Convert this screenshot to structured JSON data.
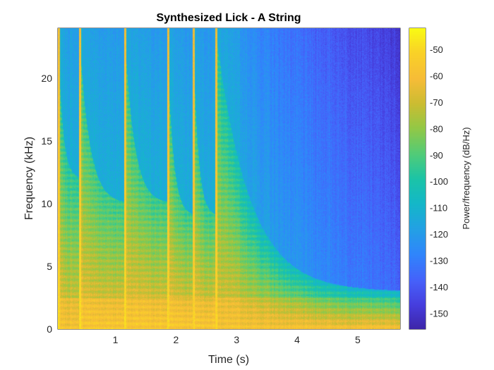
{
  "chart_data": {
    "type": "heatmap",
    "title": "Synthesized Lick - A String",
    "xlabel": "Time (s)",
    "ylabel": "Frequency (kHz)",
    "colorbar_label": "Power/frequency (dB/Hz)",
    "xlim": [
      0.05,
      5.7
    ],
    "ylim": [
      0,
      24
    ],
    "xticks": [
      1,
      2,
      3,
      4,
      5
    ],
    "yticks": [
      0,
      5,
      10,
      15,
      20
    ],
    "clim": [
      -156,
      -42
    ],
    "cticks": [
      -50,
      -60,
      -70,
      -80,
      -90,
      -100,
      -110,
      -120,
      -130,
      -140,
      -150
    ],
    "colormap": "parula",
    "grid": false,
    "colorbar_placement": "right",
    "note_onsets_s": [
      0.05,
      0.4,
      1.15,
      1.85,
      2.28,
      2.65
    ],
    "note_cutoff_peak_khz": [
      24,
      24,
      24,
      24,
      24,
      24
    ],
    "note_cutoff_end_khz": [
      12,
      10,
      10,
      9,
      9,
      3
    ],
    "note_low_band_power_db": [
      -65,
      -62,
      -62,
      -62,
      -62,
      -65
    ]
  }
}
